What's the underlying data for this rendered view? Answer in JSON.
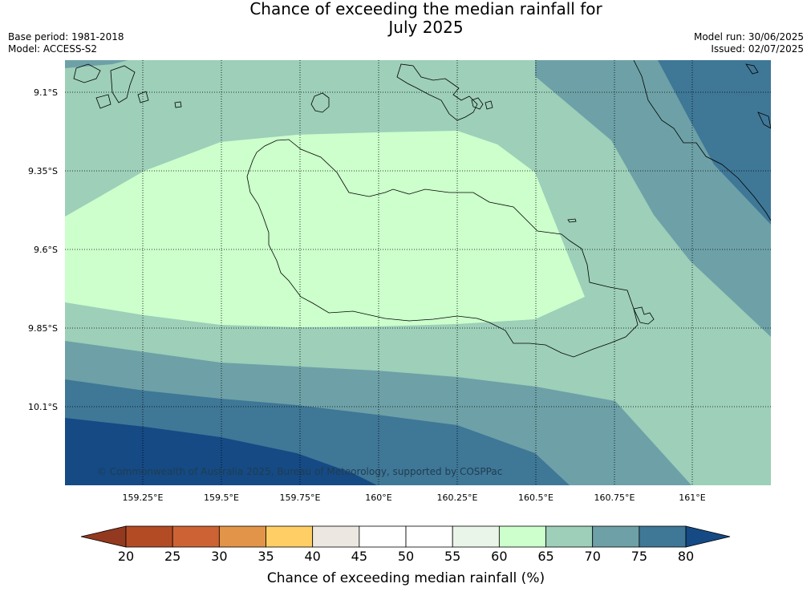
{
  "title_line1": "Chance of exceeding the median rainfall for",
  "title_line2": "July 2025",
  "base_period": "Base period: 1981-2018",
  "model": "Model: ACCESS-S2",
  "model_run": "Model run: 30/06/2025",
  "issued": "Issued: 02/07/2025",
  "copyright": "© Commonwealth of Australia 2025, Bureau of Meteorology, supported by COSPPac",
  "lat_labels": [
    "9.1°S",
    "9.35°S",
    "9.6°S",
    "9.85°S",
    "10.1°S"
  ],
  "lon_labels": [
    "159.25°E",
    "159.5°E",
    "159.75°E",
    "160°E",
    "160.25°E",
    "160.5°E",
    "160.75°E",
    "161°E"
  ],
  "colorbar": {
    "title": "Chance of exceeding median rainfall (%)",
    "ticks": [
      "20",
      "25",
      "30",
      "35",
      "40",
      "45",
      "50",
      "55",
      "60",
      "65",
      "70",
      "75",
      "80"
    ],
    "colors": [
      "#93391f",
      "#b34c25",
      "#cd6334",
      "#e29448",
      "#ffcf66",
      "#ece8e1",
      "#ffffff",
      "#ffffff",
      "#e9f5e9",
      "#ccffcc",
      "#9dcfb9",
      "#6da1a7",
      "#3f7797",
      "#154a85"
    ]
  }
}
